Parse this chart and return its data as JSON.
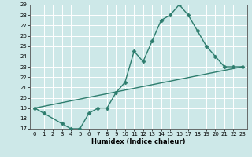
{
  "xlabel": "Humidex (Indice chaleur)",
  "line1_x": [
    0,
    1,
    3,
    4,
    5,
    6,
    7,
    8,
    9,
    10,
    11,
    12,
    13,
    14,
    15,
    16,
    17,
    18,
    19,
    20,
    21,
    22,
    23
  ],
  "line1_y": [
    19,
    18.5,
    17.5,
    17,
    17,
    18.5,
    19,
    19,
    20.5,
    21.5,
    24.5,
    23.5,
    25.5,
    27.5,
    28,
    29,
    28,
    26.5,
    25,
    24,
    23,
    23,
    23
  ],
  "line2_x": [
    0,
    23
  ],
  "line2_y": [
    19,
    23
  ],
  "ylim": [
    17,
    29
  ],
  "xlim": [
    -0.5,
    23.5
  ],
  "y_ticks": [
    17,
    18,
    19,
    20,
    21,
    22,
    23,
    24,
    25,
    26,
    27,
    28,
    29
  ],
  "x_ticks": [
    0,
    1,
    2,
    3,
    4,
    5,
    6,
    7,
    8,
    9,
    10,
    11,
    12,
    13,
    14,
    15,
    16,
    17,
    18,
    19,
    20,
    21,
    22,
    23
  ],
  "line_color": "#2e7d6e",
  "bg_color": "#cde8e8",
  "grid_color": "#b0d0d0",
  "marker": "D",
  "marker_size": 2.5,
  "linewidth": 1.0,
  "xlabel_fontsize": 6.0,
  "tick_fontsize": 5.0
}
